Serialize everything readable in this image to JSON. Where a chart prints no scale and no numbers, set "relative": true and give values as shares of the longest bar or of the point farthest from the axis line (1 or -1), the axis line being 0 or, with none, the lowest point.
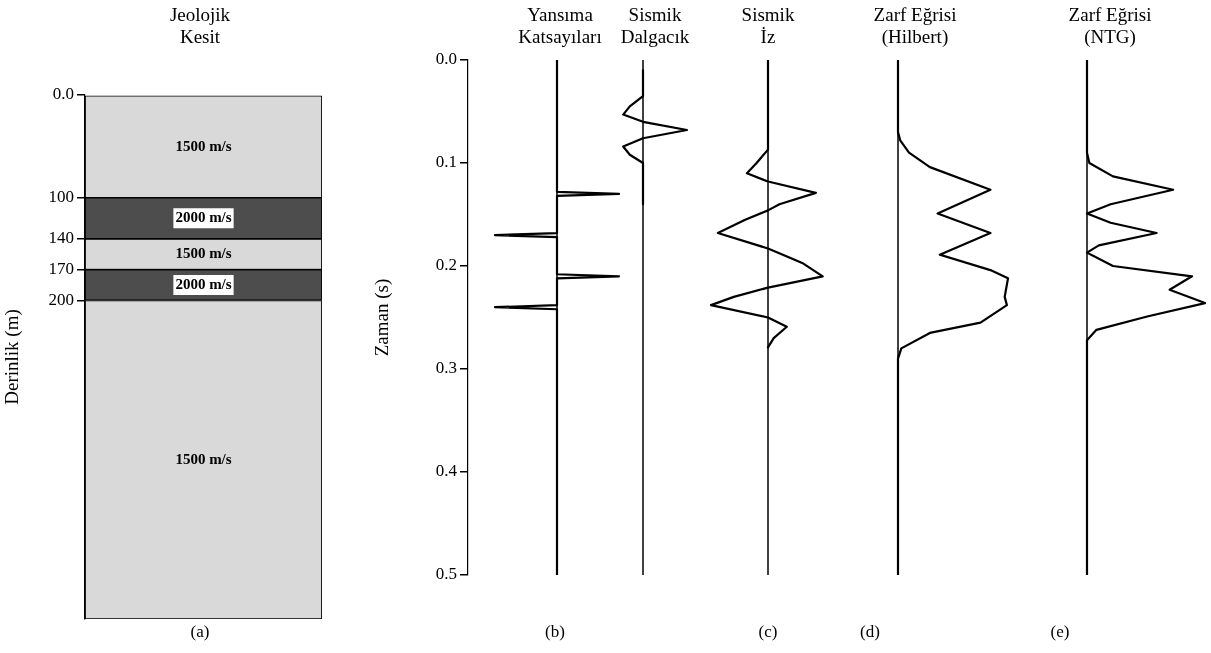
{
  "chart_data": [
    {
      "type": "bar",
      "title": "Jeolojik\nKesit",
      "ylabel": "Derinlik (m)",
      "categories": [
        null
      ],
      "stacked": true,
      "series": [
        {
          "color": "#d9d9d9",
          "values": [
            100
          ]
        },
        {
          "color": "#4d4d4d",
          "values": [
            40
          ]
        },
        {
          "color": "#d9d9d9",
          "values": [
            30
          ]
        },
        {
          "color": "#4d4d4d",
          "values": [
            30
          ]
        },
        {
          "color": "#d9d9d9",
          "values": [
            310
          ]
        }
      ],
      "ylim": [
        510,
        0
      ],
      "yticks": [
        {
          "value": 0,
          "label": "0.0"
        },
        100,
        140,
        170,
        200
      ],
      "grid": false,
      "legend": false,
      "annotations": [
        "1500 m/s",
        "2000 m/s",
        "1500 m/s",
        "2000 m/s",
        "1500 m/s",
        "(a)"
      ]
    },
    {
      "type": "line",
      "title": "Yansıma\nKatsayıları",
      "ylabel": "Zaman (s)",
      "orientation": "horizontal",
      "relative": true,
      "series": [
        {
          "color": "#000000",
          "x": [
            0,
            0.128,
            0.13,
            0.132,
            0.168,
            0.17,
            0.172,
            0.208,
            0.21,
            0.212,
            0.238,
            0.24,
            0.242,
            0.5
          ],
          "values": [
            0,
            0,
            1,
            0,
            0,
            -1,
            0,
            0,
            1,
            0,
            0,
            -1,
            0,
            0
          ]
        }
      ],
      "ylim": [
        0.5,
        0
      ],
      "yticks": [
        {
          "value": 0,
          "label": "0.0"
        },
        0.1,
        0.2,
        0.3,
        0.4,
        0.5
      ],
      "grid": false,
      "legend": false,
      "annotations": [
        "(b)"
      ]
    },
    {
      "type": "line",
      "title": "Sismik\nDalgacık",
      "orientation": "horizontal",
      "relative": true,
      "tick_labels": false,
      "series": [
        {
          "color": "#000000",
          "x": [
            0.01,
            0.035,
            0.045,
            0.053,
            0.06,
            0.068,
            0.076,
            0.084,
            0.092,
            0.1,
            0.14
          ],
          "values": [
            0,
            0,
            -0.3,
            -0.45,
            0,
            1,
            0,
            -0.45,
            -0.3,
            0,
            0
          ]
        }
      ],
      "ylim": [
        0.5,
        0
      ],
      "grid": false,
      "legend": false
    },
    {
      "type": "line",
      "title": "Sismik\nİz",
      "orientation": "horizontal",
      "relative": true,
      "tick_labels": false,
      "series": [
        {
          "color": "#000000",
          "x": [
            0,
            0.087,
            0.1,
            0.11,
            0.118,
            0.129,
            0.14,
            0.146,
            0.155,
            0.168,
            0.183,
            0.197,
            0.21,
            0.221,
            0.23,
            0.238,
            0.25,
            0.259,
            0.27,
            0.279
          ],
          "values": [
            0,
            0,
            -0.2,
            -0.37,
            0,
            0.84,
            0.2,
            0,
            -0.4,
            -0.88,
            0,
            0.6,
            0.96,
            0,
            -0.6,
            -1,
            0,
            0.33,
            0.1,
            0
          ]
        }
      ],
      "ylim": [
        0.5,
        0
      ],
      "grid": false,
      "legend": false,
      "annotations": [
        "(c)"
      ]
    },
    {
      "type": "line",
      "title": "Zarf Eğrisi\n(Hilbert)",
      "orientation": "horizontal",
      "relative": true,
      "tick_labels": false,
      "series": [
        {
          "color": "#000000",
          "x": [
            0,
            0.07,
            0.078,
            0.09,
            0.104,
            0.126,
            0.149,
            0.168,
            0.189,
            0.204,
            0.212,
            0.23,
            0.238,
            0.255,
            0.265,
            0.28,
            0.29,
            0.5
          ],
          "values": [
            0,
            0,
            0.02,
            0.1,
            0.29,
            0.84,
            0.36,
            0.84,
            0.38,
            0.84,
            1,
            0.97,
            0.99,
            0.75,
            0.29,
            0.03,
            0,
            0
          ]
        }
      ],
      "ylim": [
        0.5,
        0
      ],
      "grid": false,
      "legend": false,
      "annotations": [
        "(d)"
      ]
    },
    {
      "type": "line",
      "title": "Zarf Eğrisi\n(NTG)",
      "orientation": "horizontal",
      "relative": true,
      "tick_labels": false,
      "series": [
        {
          "color": "#000000",
          "x": [
            0,
            0.09,
            0.1,
            0.113,
            0.126,
            0.14,
            0.149,
            0.158,
            0.168,
            0.18,
            0.187,
            0.2,
            0.21,
            0.223,
            0.236,
            0.249,
            0.262,
            0.272,
            0.5
          ],
          "values": [
            0,
            0,
            0.02,
            0.22,
            0.73,
            0.2,
            0,
            0.2,
            0.59,
            0.1,
            0,
            0.22,
            0.89,
            0.7,
            1,
            0.51,
            0.08,
            0,
            0
          ]
        }
      ],
      "ylim": [
        0.5,
        0
      ],
      "grid": false,
      "legend": false,
      "annotations": [
        "(e)"
      ]
    }
  ]
}
